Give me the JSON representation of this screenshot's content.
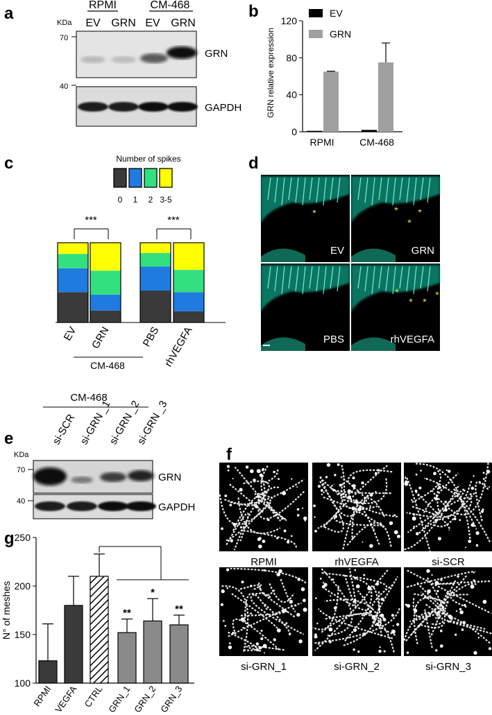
{
  "panel_labels": {
    "a": "a",
    "b": "b",
    "c": "c",
    "d": "d",
    "e": "e",
    "f": "f",
    "g": "g"
  },
  "panel_a": {
    "groups": [
      "RPMI",
      "CM-468"
    ],
    "lanes": [
      "EV",
      "GRN",
      "EV",
      "GRN"
    ],
    "kda_label": "KDa",
    "markers": [
      "70",
      "40"
    ],
    "bands": [
      "GRN",
      "GAPDH"
    ]
  },
  "panel_c": {
    "legend_title": "Number of spikes",
    "legend_labels": [
      "0",
      "1",
      "2",
      "3-5"
    ],
    "significance": [
      "***",
      "***"
    ],
    "group_label": "CM-468"
  },
  "panel_d": {
    "labels": [
      "EV",
      "GRN",
      "PBS",
      "rhVEGFA"
    ],
    "star": "*"
  },
  "panel_e": {
    "header": "CM-468",
    "lanes": [
      "si-SCR",
      "si-GRN _1",
      "si-GRN _2",
      "si-GRN _3"
    ],
    "kda_label": "KDa",
    "markers": [
      "70",
      "40"
    ],
    "bands": [
      "GRN",
      "GAPDH"
    ]
  },
  "panel_f": {
    "labels": [
      "RPMI",
      "rhVEGFA",
      "si-SCR",
      "si-GRN_1",
      "si-GRN_2",
      "si-GRN_3"
    ]
  },
  "chart_data": [
    {
      "panel": "b",
      "type": "bar",
      "categories": [
        "RPMI",
        "CM-468"
      ],
      "series": [
        {
          "name": "EV",
          "values": [
            1,
            2
          ],
          "errors": [
            0,
            0
          ]
        },
        {
          "name": "GRN",
          "values": [
            65,
            75
          ],
          "errors": [
            0.5,
            21
          ]
        }
      ],
      "ylabel": "GRN relative expression",
      "ylim": [
        0,
        120
      ],
      "yticks": [
        0,
        40,
        80,
        120
      ],
      "legend": "top-left",
      "colors": {
        "EV": "#000000",
        "GRN": "#a0a0a0"
      }
    },
    {
      "panel": "c",
      "type": "bar",
      "stacked": true,
      "categories": [
        "EV",
        "GRN",
        "PBS",
        "rhVEGFA"
      ],
      "series": [
        {
          "name": "0",
          "values": [
            0.38,
            0.15,
            0.4,
            0.14
          ]
        },
        {
          "name": "1",
          "values": [
            0.3,
            0.2,
            0.3,
            0.24
          ]
        },
        {
          "name": "2",
          "values": [
            0.18,
            0.3,
            0.17,
            0.28
          ]
        },
        {
          "name": "3-5",
          "values": [
            0.14,
            0.35,
            0.13,
            0.34
          ]
        }
      ],
      "colors": {
        "0": "#3a3a3a",
        "1": "#1f7be0",
        "2": "#32e07f",
        "3-5": "#ffff00"
      }
    },
    {
      "panel": "g",
      "type": "bar",
      "categories": [
        "RPMI",
        "VEGFA",
        "CTRL",
        "GRN_1",
        "GRN_2",
        "GRN_3"
      ],
      "values": [
        123,
        180,
        210,
        152,
        164,
        160
      ],
      "errors": [
        38,
        30,
        23,
        14,
        23,
        10
      ],
      "annotations": [
        "",
        "",
        "",
        "**",
        "*",
        "**"
      ],
      "ylabel": "N° of meshes",
      "ylim": [
        100,
        250
      ],
      "yticks": [
        100,
        150,
        200,
        250
      ]
    }
  ]
}
